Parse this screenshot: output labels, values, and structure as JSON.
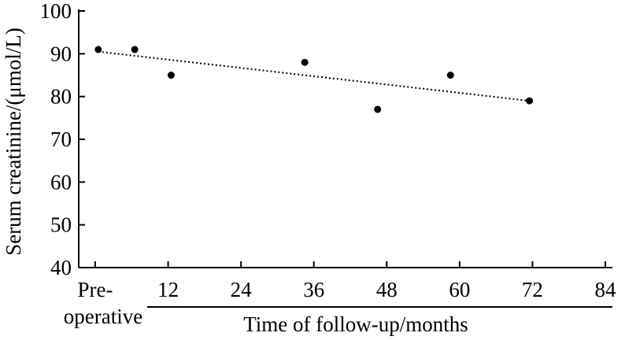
{
  "chart_data": {
    "type": "scatter",
    "title": "",
    "xlabel": "Time of follow-up/months",
    "ylabel": "Serum creatinine/(μmol/L)",
    "xlim": [
      0,
      84
    ],
    "ylim": [
      40,
      100
    ],
    "x_ticks": [
      {
        "value": 0,
        "lines": [
          "Pre-",
          "operative"
        ]
      },
      {
        "value": 12,
        "lines": [
          "12"
        ]
      },
      {
        "value": 24,
        "lines": [
          "24"
        ]
      },
      {
        "value": 36,
        "lines": [
          "36"
        ]
      },
      {
        "value": 48,
        "lines": [
          "48"
        ]
      },
      {
        "value": 60,
        "lines": [
          "60"
        ]
      },
      {
        "value": 72,
        "lines": [
          "72"
        ]
      },
      {
        "value": 84,
        "lines": [
          "84"
        ]
      }
    ],
    "y_ticks": [
      40,
      50,
      60,
      70,
      80,
      90,
      100
    ],
    "grid": false,
    "legend": "none",
    "points": [
      {
        "x": 0.5,
        "y": 91
      },
      {
        "x": 6.5,
        "y": 91
      },
      {
        "x": 12.5,
        "y": 85
      },
      {
        "x": 34.5,
        "y": 88
      },
      {
        "x": 46.5,
        "y": 77
      },
      {
        "x": 58.5,
        "y": 85
      },
      {
        "x": 71.5,
        "y": 79
      }
    ],
    "trendline": {
      "style": "dotted",
      "from": {
        "x": 0.5,
        "y": 90.5
      },
      "to": {
        "x": 71.5,
        "y": 79
      }
    }
  }
}
